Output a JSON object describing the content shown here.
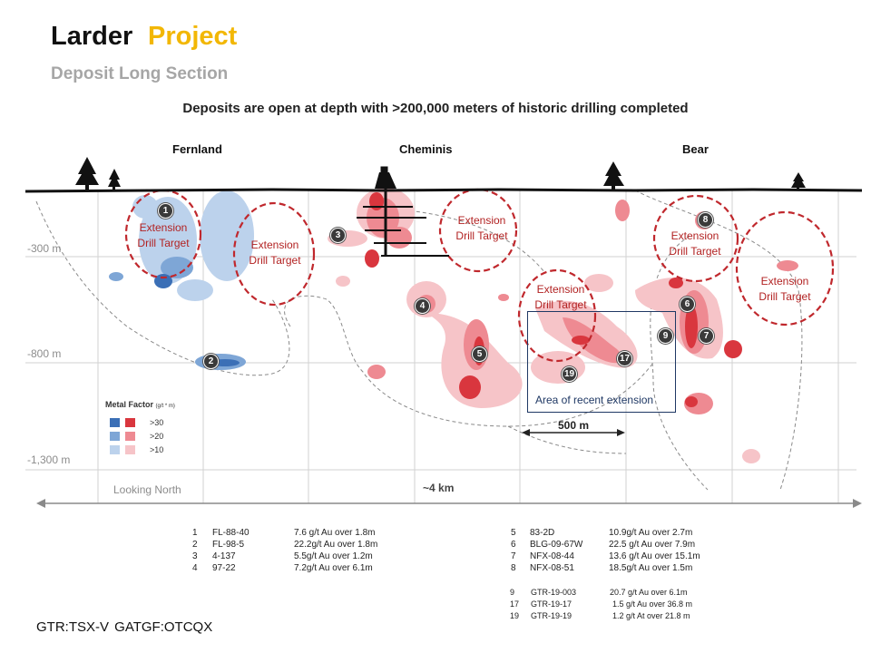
{
  "header": {
    "title_main": "Larder",
    "title_accent": "Project",
    "subtitle": "Deposit Long Section",
    "headline": "Deposits are open at depth with >200,000 meters of historic drilling completed"
  },
  "deposits": [
    "Fernland",
    "Cheminis",
    "Bear"
  ],
  "depth_labels": [
    "-300 m",
    "-800 m",
    "-1,300 m"
  ],
  "targets": [
    {
      "line1": "Extension",
      "line2": "Drill Target"
    },
    {
      "line1": "Extension",
      "line2": "Drill Target"
    },
    {
      "line1": "Extension",
      "line2": "Drill Target"
    },
    {
      "line1": "Extension",
      "line2": "Drill Target"
    },
    {
      "line1": "Extension",
      "line2": "Drill Target"
    },
    {
      "line1": "Extension",
      "line2": "Drill Target"
    }
  ],
  "markers": [
    "1",
    "2",
    "3",
    "4",
    "5",
    "6",
    "7",
    "8",
    "9",
    "17",
    "19"
  ],
  "recent_area_label": "Area of recent extension",
  "scale_bar_label": "500 m",
  "looking_label": "Looking North",
  "section_length_label": "~4 km",
  "legend": {
    "title": "Metal Factor",
    "unit": "(g/t * m)",
    "items": [
      {
        "label": ">30",
        "blue": "#3b6fb6",
        "red": "#d9363e"
      },
      {
        "label": ">20",
        "blue": "#7ea6d6",
        "red": "#ee8a92"
      },
      {
        "label": ">10",
        "blue": "#bcd2ec",
        "red": "#f6c4c8"
      }
    ]
  },
  "results_left": [
    {
      "no": "1",
      "hole": "FL-88-40",
      "result": "7.6 g/t Au over 1.8m"
    },
    {
      "no": "2",
      "hole": "FL-98-5",
      "result": "22.2g/t Au over 1.8m"
    },
    {
      "no": "3",
      "hole": "4-137",
      "result": "5.5g/t Au over 1.2m"
    },
    {
      "no": "4",
      "hole": "97-22",
      "result": "7.2g/t Au over 6.1m"
    }
  ],
  "results_right": [
    {
      "no": "5",
      "hole": "83-2D",
      "result": "10.9g/t Au over 2.7m"
    },
    {
      "no": "6",
      "hole": "BLG-09-67W",
      "result": "22.5 g/t Au over 7.9m"
    },
    {
      "no": "7",
      "hole": "NFX-08-44",
      "result": "13.6 g/t Au over 15.1m"
    },
    {
      "no": "8",
      "hole": "NFX-08-51",
      "result": "18.5g/t Au over 1.5m"
    }
  ],
  "results_recent": [
    {
      "no": "9",
      "hole": "GTR-19-003",
      "result": "20.7 g/t Au over 6.1m"
    },
    {
      "no": "17",
      "hole": "GTR-19-17",
      "result": "1.5 g/t Au over 36.8 m"
    },
    {
      "no": "19",
      "hole": "GTR-19-19",
      "result": "1.2 g/t At over 21.8 m"
    }
  ],
  "footer_ticker": "GTR:TSX-V  GATGF:OTCQX",
  "colors": {
    "accent": "#f2b705",
    "target": "#c0282d",
    "box": "#1f3864"
  }
}
